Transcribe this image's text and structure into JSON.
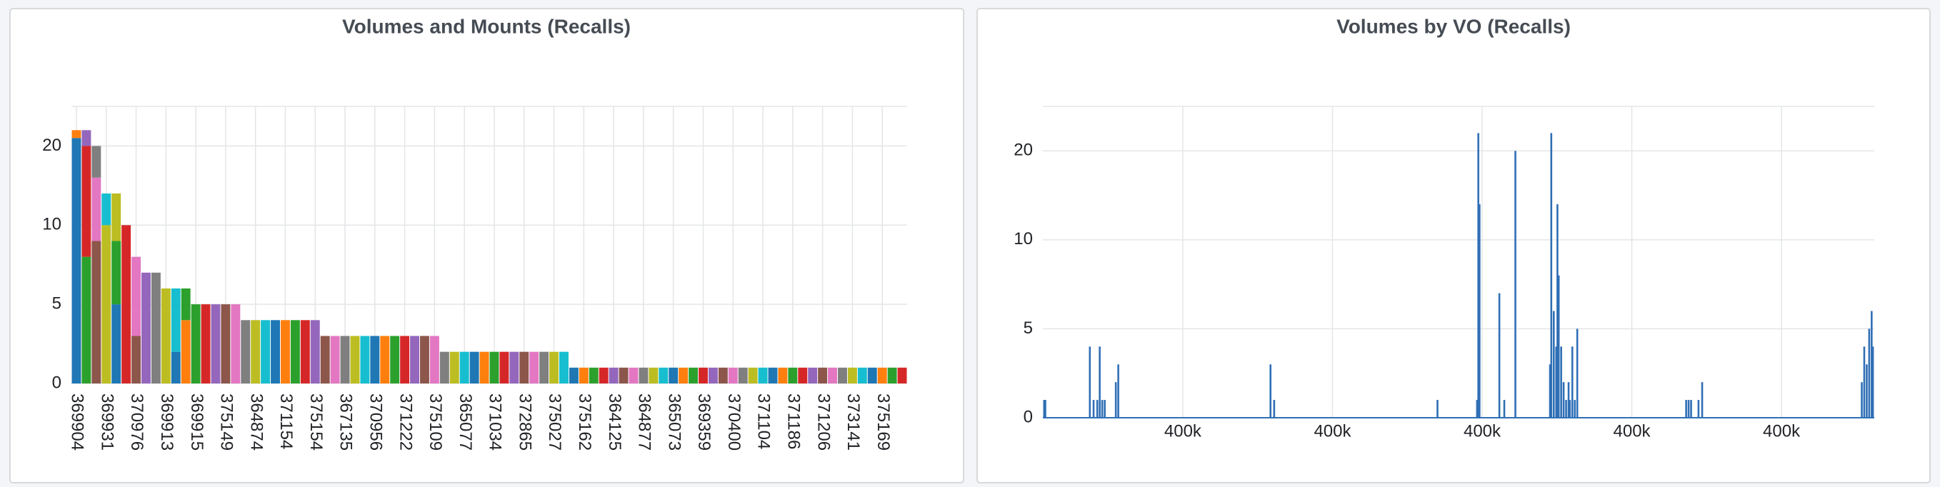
{
  "chart_data": [
    {
      "type": "bar",
      "stacked": true,
      "title": "Volumes and Mounts (Recalls)",
      "categories": [
        "369904",
        null,
        null,
        "369931",
        null,
        null,
        "370976",
        null,
        null,
        "369913",
        null,
        null,
        "369915",
        null,
        null,
        "375149",
        null,
        null,
        "364874",
        null,
        null,
        "371154",
        null,
        null,
        "375154",
        null,
        null,
        "367135",
        null,
        null,
        "370956",
        null,
        null,
        "371222",
        null,
        null,
        "375109",
        null,
        null,
        "365077",
        null,
        null,
        "371034",
        null,
        null,
        "372865",
        null,
        null,
        "375027",
        null,
        null,
        "375162",
        null,
        null,
        "364125",
        null,
        null,
        "364877",
        null,
        null,
        "365073",
        null,
        null,
        "369359",
        null,
        null,
        "370400",
        null,
        null,
        "371104",
        null,
        null,
        "371186",
        null,
        null,
        "371206",
        null,
        null,
        "373141",
        null,
        null,
        "375169",
        null,
        null
      ],
      "series": [
        {
          "color": "#1f77b4",
          "values": [
            21,
            0,
            0,
            0,
            5,
            0,
            0,
            0,
            0,
            0,
            2,
            0,
            0,
            0,
            0,
            0,
            0,
            0,
            0,
            0,
            4,
            0,
            0,
            0,
            0,
            0,
            0,
            0,
            0,
            0,
            3,
            0,
            0,
            0,
            0,
            0,
            0,
            0,
            0,
            0,
            2,
            0,
            0,
            0,
            0,
            0,
            0,
            0,
            0,
            0,
            1,
            0,
            0,
            0,
            0,
            0,
            0,
            0,
            0,
            0,
            1,
            0,
            0,
            0,
            0,
            0,
            0,
            0,
            0,
            0,
            1,
            0,
            0,
            0,
            0,
            0,
            0,
            0,
            0,
            0,
            1,
            0,
            0,
            0
          ]
        },
        {
          "color": "#ff7f0e",
          "values": [
            1,
            0,
            0,
            0,
            0,
            0,
            0,
            0,
            0,
            0,
            0,
            4,
            0,
            0,
            0,
            0,
            0,
            0,
            0,
            0,
            0,
            4,
            0,
            0,
            0,
            0,
            0,
            0,
            0,
            0,
            0,
            3,
            0,
            0,
            0,
            0,
            0,
            0,
            0,
            0,
            0,
            2,
            0,
            0,
            0,
            0,
            0,
            0,
            0,
            0,
            0,
            1,
            0,
            0,
            0,
            0,
            0,
            0,
            0,
            0,
            0,
            1,
            0,
            0,
            0,
            0,
            0,
            0,
            0,
            0,
            0,
            1,
            0,
            0,
            0,
            0,
            0,
            0,
            0,
            0,
            0,
            1,
            0,
            0
          ]
        },
        {
          "color": "#2ca02c",
          "values": [
            0,
            8,
            0,
            0,
            4,
            0,
            0,
            0,
            0,
            0,
            0,
            2,
            5,
            0,
            0,
            0,
            0,
            0,
            0,
            0,
            0,
            0,
            4,
            0,
            0,
            0,
            0,
            0,
            0,
            0,
            0,
            0,
            3,
            0,
            0,
            0,
            0,
            0,
            0,
            0,
            0,
            0,
            2,
            0,
            0,
            0,
            0,
            0,
            0,
            0,
            0,
            0,
            1,
            0,
            0,
            0,
            0,
            0,
            0,
            0,
            0,
            0,
            1,
            0,
            0,
            0,
            0,
            0,
            0,
            0,
            0,
            0,
            1,
            0,
            0,
            0,
            0,
            0,
            0,
            0,
            0,
            0,
            1,
            0
          ]
        },
        {
          "color": "#d62728",
          "values": [
            0,
            12,
            0,
            0,
            0,
            10,
            0,
            0,
            0,
            0,
            0,
            0,
            0,
            5,
            0,
            0,
            0,
            0,
            0,
            0,
            0,
            0,
            0,
            4,
            0,
            0,
            0,
            0,
            0,
            0,
            0,
            0,
            0,
            3,
            0,
            0,
            0,
            0,
            0,
            0,
            0,
            0,
            0,
            2,
            0,
            0,
            0,
            0,
            0,
            0,
            0,
            0,
            0,
            1,
            0,
            0,
            0,
            0,
            0,
            0,
            0,
            0,
            0,
            1,
            0,
            0,
            0,
            0,
            0,
            0,
            0,
            0,
            0,
            1,
            0,
            0,
            0,
            0,
            0,
            0,
            0,
            0,
            0,
            1
          ]
        },
        {
          "color": "#9467bd",
          "values": [
            0,
            2,
            0,
            0,
            0,
            0,
            0,
            7,
            0,
            0,
            0,
            0,
            0,
            0,
            5,
            0,
            0,
            0,
            0,
            0,
            0,
            0,
            0,
            0,
            4,
            0,
            0,
            0,
            0,
            0,
            0,
            0,
            0,
            0,
            3,
            0,
            0,
            0,
            0,
            0,
            0,
            0,
            0,
            0,
            2,
            0,
            0,
            0,
            0,
            0,
            0,
            0,
            0,
            0,
            1,
            0,
            0,
            0,
            0,
            0,
            0,
            0,
            0,
            0,
            1,
            0,
            0,
            0,
            0,
            0,
            0,
            0,
            0,
            0,
            1,
            0,
            0,
            0,
            0,
            0,
            0,
            0,
            0,
            0
          ]
        },
        {
          "color": "#8c564b",
          "values": [
            0,
            0,
            9,
            0,
            0,
            0,
            3,
            0,
            0,
            0,
            0,
            0,
            0,
            0,
            0,
            5,
            0,
            0,
            0,
            0,
            0,
            0,
            0,
            0,
            0,
            3,
            0,
            0,
            0,
            0,
            0,
            0,
            0,
            0,
            0,
            3,
            0,
            0,
            0,
            0,
            0,
            0,
            0,
            0,
            0,
            2,
            0,
            0,
            0,
            0,
            0,
            0,
            0,
            0,
            0,
            1,
            0,
            0,
            0,
            0,
            0,
            0,
            0,
            0,
            0,
            1,
            0,
            0,
            0,
            0,
            0,
            0,
            0,
            0,
            0,
            1,
            0,
            0,
            0,
            0,
            0,
            0,
            0,
            0
          ]
        },
        {
          "color": "#e377c2",
          "values": [
            0,
            0,
            7,
            0,
            0,
            0,
            5,
            0,
            0,
            0,
            0,
            0,
            0,
            0,
            0,
            0,
            5,
            0,
            0,
            0,
            0,
            0,
            0,
            0,
            0,
            0,
            3,
            0,
            0,
            0,
            0,
            0,
            0,
            0,
            0,
            0,
            3,
            0,
            0,
            0,
            0,
            0,
            0,
            0,
            0,
            0,
            2,
            0,
            0,
            0,
            0,
            0,
            0,
            0,
            0,
            0,
            1,
            0,
            0,
            0,
            0,
            0,
            0,
            0,
            0,
            0,
            1,
            0,
            0,
            0,
            0,
            0,
            0,
            0,
            0,
            0,
            1,
            0,
            0,
            0,
            0,
            0,
            0,
            0
          ]
        },
        {
          "color": "#7f7f7f",
          "values": [
            0,
            0,
            4,
            0,
            0,
            0,
            0,
            0,
            7,
            0,
            0,
            0,
            0,
            0,
            0,
            0,
            0,
            4,
            0,
            0,
            0,
            0,
            0,
            0,
            0,
            0,
            0,
            3,
            0,
            0,
            0,
            0,
            0,
            0,
            0,
            0,
            0,
            2,
            0,
            0,
            0,
            0,
            0,
            0,
            0,
            0,
            0,
            2,
            0,
            0,
            0,
            0,
            0,
            0,
            0,
            0,
            0,
            1,
            0,
            0,
            0,
            0,
            0,
            0,
            0,
            0,
            0,
            1,
            0,
            0,
            0,
            0,
            0,
            0,
            0,
            0,
            0,
            1,
            0,
            0,
            0,
            0,
            0,
            0
          ]
        },
        {
          "color": "#bcbd22",
          "values": [
            0,
            0,
            0,
            10,
            5,
            0,
            0,
            0,
            0,
            6,
            0,
            0,
            0,
            0,
            0,
            0,
            0,
            0,
            4,
            0,
            0,
            0,
            0,
            0,
            0,
            0,
            0,
            0,
            3,
            0,
            0,
            0,
            0,
            0,
            0,
            0,
            0,
            0,
            2,
            0,
            0,
            0,
            0,
            0,
            0,
            0,
            0,
            0,
            2,
            0,
            0,
            0,
            0,
            0,
            0,
            0,
            0,
            0,
            1,
            0,
            0,
            0,
            0,
            0,
            0,
            0,
            0,
            0,
            1,
            0,
            0,
            0,
            0,
            0,
            0,
            0,
            0,
            0,
            1,
            0,
            0,
            0,
            0,
            0
          ]
        },
        {
          "color": "#17becf",
          "values": [
            0,
            0,
            0,
            4,
            0,
            0,
            0,
            0,
            0,
            0,
            4,
            0,
            0,
            0,
            0,
            0,
            0,
            0,
            0,
            4,
            0,
            0,
            0,
            0,
            0,
            0,
            0,
            0,
            0,
            3,
            0,
            0,
            0,
            0,
            0,
            0,
            0,
            0,
            0,
            2,
            0,
            0,
            0,
            0,
            0,
            0,
            0,
            0,
            0,
            2,
            0,
            0,
            0,
            0,
            0,
            0,
            0,
            0,
            0,
            1,
            0,
            0,
            0,
            0,
            0,
            0,
            0,
            0,
            0,
            1,
            0,
            0,
            0,
            0,
            0,
            0,
            0,
            0,
            0,
            1,
            0,
            0,
            0,
            0
          ]
        }
      ],
      "ylim": [
        0,
        25
      ],
      "yticks": [
        0,
        5,
        10,
        20
      ],
      "grid": true
    },
    {
      "type": "bar",
      "title": "Volumes by VO (Recalls)",
      "color": "#2f6fb5",
      "x": [
        364147,
        364163,
        364758,
        364808,
        364857,
        364890,
        364923,
        364957,
        365105,
        365138,
        367172,
        367221,
        369403,
        369932,
        369949,
        369965,
        370230,
        370296,
        370444,
        370907,
        370924,
        370957,
        370990,
        371006,
        371023,
        371056,
        371089,
        371122,
        371155,
        371172,
        371205,
        371238,
        371271,
        372726,
        372759,
        372792,
        372891,
        372940,
        375073,
        375106,
        375139,
        375172,
        375205,
        375222
      ],
      "values": [
        1,
        1,
        4,
        1,
        1,
        4,
        1,
        1,
        2,
        3,
        3,
        1,
        1,
        1,
        22,
        14,
        7,
        1,
        20,
        3,
        22,
        6,
        4,
        14,
        8,
        4,
        2,
        1,
        2,
        1,
        4,
        1,
        5,
        1,
        1,
        1,
        1,
        2,
        2,
        4,
        3,
        5,
        6,
        4
      ],
      "xlim": [
        364130,
        375240
      ],
      "xticks": [
        {
          "value": 366000,
          "label": "400k"
        },
        {
          "value": 368000,
          "label": "400k"
        },
        {
          "value": 370000,
          "label": "400k"
        },
        {
          "value": 372000,
          "label": "400k"
        },
        {
          "value": 374000,
          "label": "400k"
        }
      ],
      "ylim": [
        0,
        25
      ],
      "yticks": [
        0,
        5,
        10,
        20
      ],
      "grid": true
    }
  ]
}
